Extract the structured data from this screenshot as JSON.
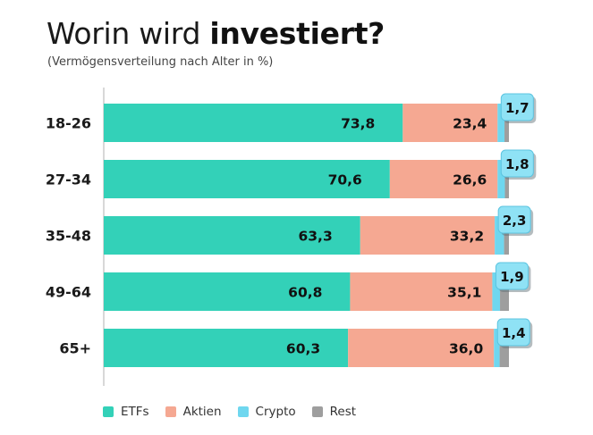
{
  "title": {
    "normal": "Worin wird ",
    "bold": "investiert?"
  },
  "subtitle": "(Vermögensverteilung nach Alter in %)",
  "colors": {
    "ETFs": "#33d1b8",
    "Aktien": "#f5a892",
    "Crypto": "#6fd7ef",
    "Rest": "#9e9e9e",
    "badge_fill": "#8fe2f5",
    "badge_border": "#5cc4e0",
    "axis": "#cccccc"
  },
  "chart_data": {
    "type": "bar",
    "orientation": "horizontal",
    "stacked": true,
    "categories": [
      "18-26",
      "27-34",
      "35-48",
      "49-64",
      "65+"
    ],
    "series": [
      {
        "name": "ETFs",
        "values": [
          73.8,
          70.6,
          63.3,
          60.8,
          60.3
        ]
      },
      {
        "name": "Aktien",
        "values": [
          23.4,
          26.6,
          33.2,
          35.1,
          36.0
        ]
      },
      {
        "name": "Crypto",
        "values": [
          1.7,
          1.8,
          2.3,
          1.9,
          1.4
        ]
      },
      {
        "name": "Rest",
        "values": [
          1.1,
          1.0,
          1.2,
          2.2,
          2.3
        ]
      }
    ],
    "data_labels": {
      "ETFs": [
        "73,8",
        "70,6",
        "63,3",
        "60,8",
        "60,3"
      ],
      "Aktien": [
        "23,4",
        "26,6",
        "33,2",
        "35,1",
        "36,0"
      ],
      "Crypto": [
        "1,7",
        "1,8",
        "2,3",
        "1,9",
        "1,4"
      ]
    },
    "xlim": [
      0,
      100
    ],
    "grid": false,
    "legend_position": "bottom-left"
  },
  "legend": [
    {
      "label": "ETFs",
      "color": "#33d1b8"
    },
    {
      "label": "Aktien",
      "color": "#f5a892"
    },
    {
      "label": "Crypto",
      "color": "#6fd7ef"
    },
    {
      "label": "Rest",
      "color": "#9e9e9e"
    }
  ]
}
